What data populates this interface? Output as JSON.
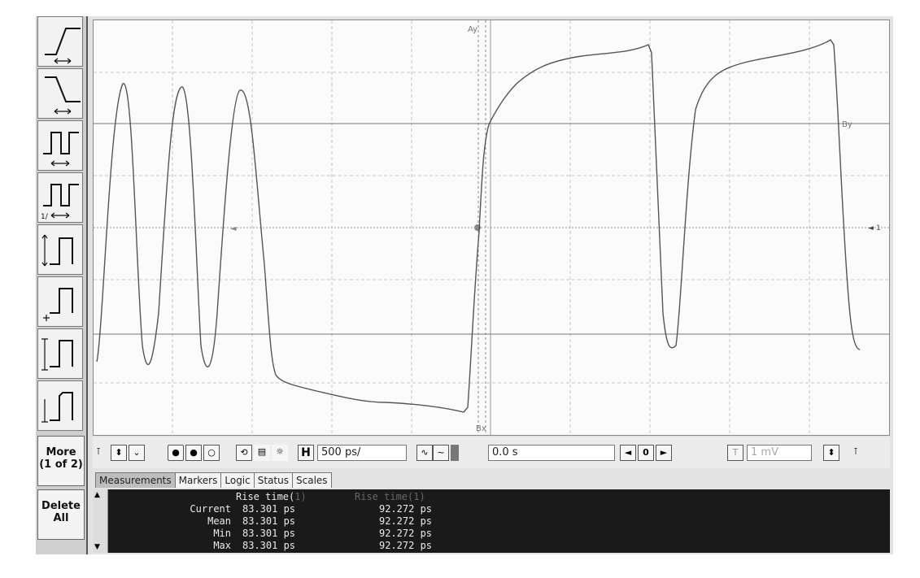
{
  "toolbar": {
    "more_label": "More",
    "more_page": "(1 of 2)",
    "delete_label": "Delete",
    "delete_label2": "All",
    "tools": [
      "rise-time-icon",
      "fall-time-icon",
      "period-icon",
      "frequency-icon",
      "pulse-width-icon",
      "amplitude-icon",
      "top-base-icon",
      "overshoot-icon"
    ]
  },
  "screen": {
    "marker_a_label": "Ay",
    "marker_b_label": "Bx",
    "marker_right_label": "By",
    "channel_label": "1"
  },
  "controls": {
    "h_label": "H",
    "timebase": "500 ps/",
    "delay": "0.0 s",
    "nav_center": "0",
    "trigger_label": "T",
    "trigger_level": "1 mV"
  },
  "tabs": [
    "Measurements",
    "Markers",
    "Logic",
    "Status",
    "Scales"
  ],
  "measurements": {
    "col1_header": "Rise time(",
    "col1_header_dim": "1)",
    "col2_header": "Rise time(",
    "col2_header_dim": "1)",
    "rows": [
      {
        "label": "Current",
        "v1": "83.301 ps",
        "v2": "92.272 ps"
      },
      {
        "label": "Mean",
        "v1": "83.301 ps",
        "v2": "92.272 ps"
      },
      {
        "label": "Min",
        "v1": "83.301 ps",
        "v2": "92.272 ps"
      },
      {
        "label": "Max",
        "v1": "83.301 ps",
        "v2": "92.272 ps"
      }
    ]
  },
  "colors": {
    "waveform": "#555555",
    "grid": "#bbbbbb",
    "panel_bg": "#1a1a1a"
  }
}
